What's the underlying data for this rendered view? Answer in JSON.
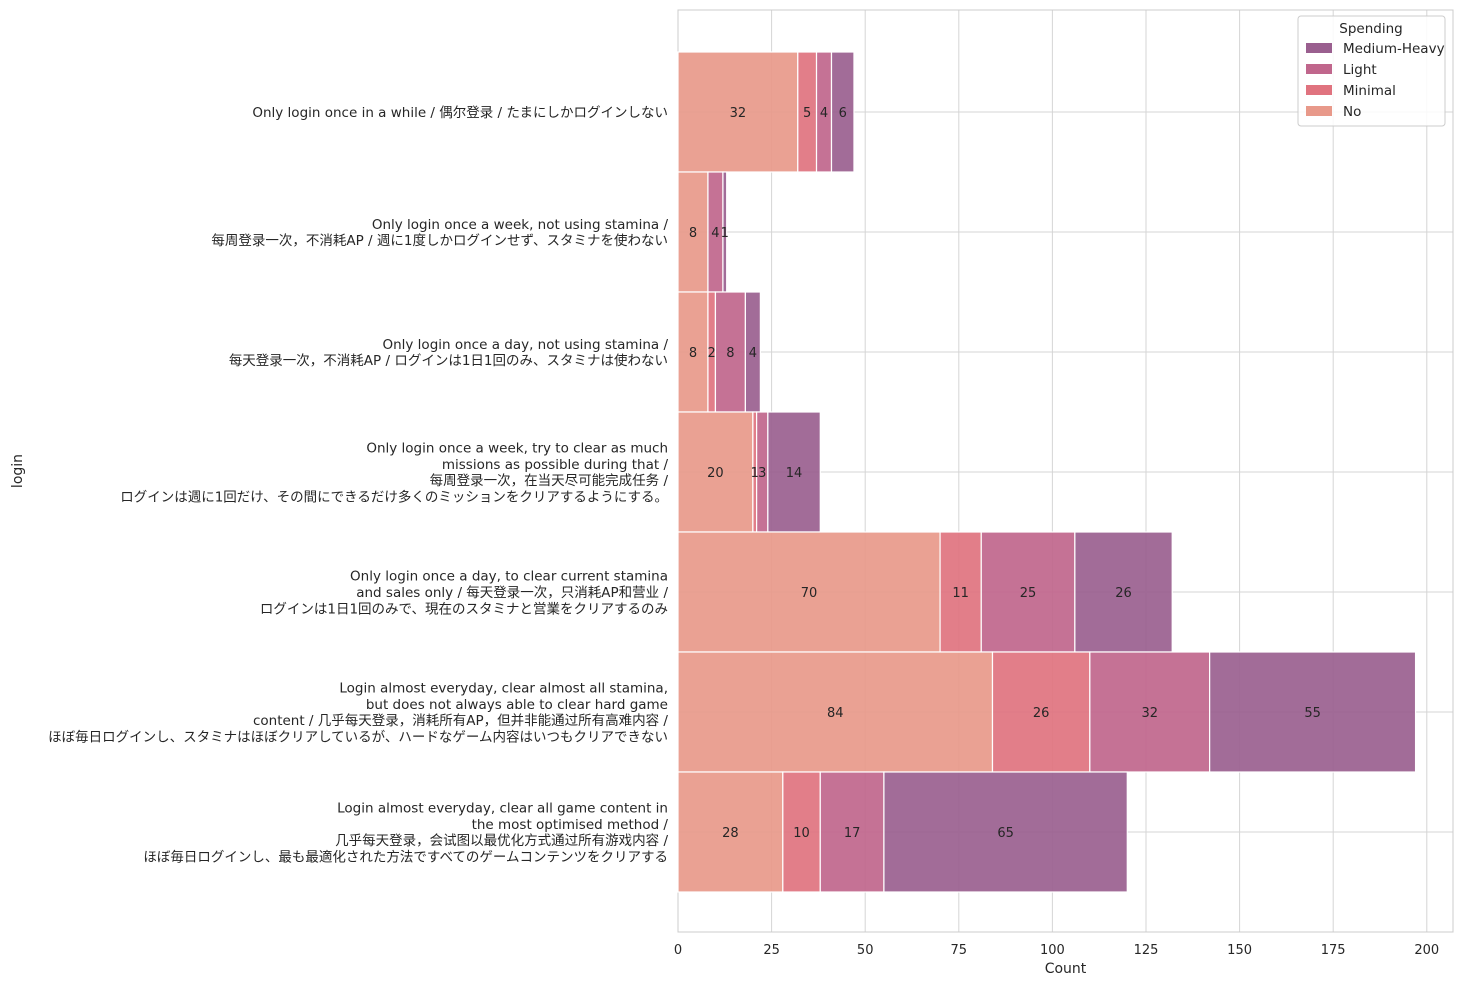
{
  "chart_data": {
    "type": "bar",
    "orientation": "horizontal",
    "stacked": true,
    "xlabel": "Count",
    "ylabel": "login",
    "xlim": [
      0,
      207
    ],
    "xticks": [
      0,
      25,
      50,
      75,
      100,
      125,
      150,
      175,
      200
    ],
    "grid": true,
    "categories": [
      [
        "Only login once in a while / 偶尔登录 / たまにしかログインしない"
      ],
      [
        "Only login once a week, not using stamina /",
        "每周登录一次，不消耗AP / 週に1度しかログインせず、スタミナを使わない"
      ],
      [
        "Only login once a day, not using stamina /",
        "每天登录一次，不消耗AP / ログインは1日1回のみ、スタミナは使わない"
      ],
      [
        "Only login once a week, try to clear as much",
        "missions as possible during that /",
        "每周登录一次，在当天尽可能完成任务 /",
        "ログインは週に1回だけ、その間にできるだけ多くのミッションをクリアするようにする。"
      ],
      [
        "Only login once a day, to clear current stamina",
        "and sales only / 每天登录一次，只消耗AP和营业 /",
        "ログインは1日1回のみで、現在のスタミナと営業をクリアするのみ"
      ],
      [
        "Login almost everyday, clear almost all stamina,",
        "but does not always able to clear hard game",
        "content / 几乎每天登录，消耗所有AP，但并非能通过所有高难内容 /",
        "ほぼ毎日ログインし、スタミナはほぼクリアしているが、ハードなゲーム内容はいつもクリアできない"
      ],
      [
        "Login almost everyday, clear all game content in",
        "the most optimised method /",
        "几乎每天登录，会试图以最优化方式通过所有游戏内容 /",
        "ほぼ毎日ログインし、最も最適化された方法ですべてのゲームコンテンツをクリアする"
      ]
    ],
    "series": [
      {
        "name": "No",
        "color": "#e8998a",
        "values": [
          32,
          8,
          8,
          20,
          70,
          84,
          28
        ]
      },
      {
        "name": "Minimal",
        "color": "#e0737f",
        "values": [
          5,
          0,
          2,
          1,
          11,
          26,
          10
        ]
      },
      {
        "name": "Light",
        "color": "#c0668c",
        "values": [
          4,
          4,
          8,
          3,
          25,
          32,
          17
        ]
      },
      {
        "name": "Medium-Heavy",
        "color": "#9a5f8f",
        "values": [
          6,
          1,
          4,
          14,
          26,
          55,
          65
        ]
      }
    ],
    "data_labels": [
      [
        "32",
        "5",
        "4",
        "6"
      ],
      [
        "8",
        "",
        "4",
        "1"
      ],
      [
        "8",
        "2",
        "8",
        "4"
      ],
      [
        "20",
        "1",
        "3",
        "14"
      ],
      [
        "70",
        "11",
        "25",
        "26"
      ],
      [
        "84",
        "26",
        "32",
        "55"
      ],
      [
        "28",
        "10",
        "17",
        "65"
      ]
    ],
    "legend": {
      "title": "Spending",
      "position": "top-right",
      "order": [
        "Medium-Heavy",
        "Light",
        "Minimal",
        "No"
      ]
    }
  }
}
